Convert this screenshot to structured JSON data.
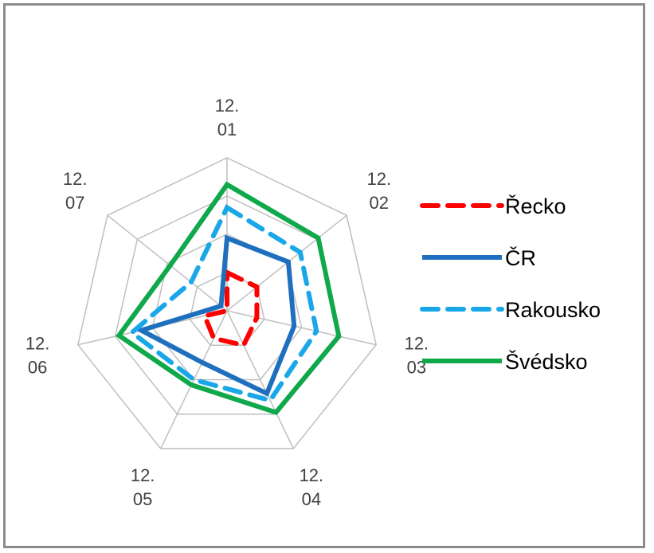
{
  "chart_data": {
    "type": "radar",
    "categories": [
      [
        "12.",
        "01"
      ],
      [
        "12.",
        "02"
      ],
      [
        "12.",
        "03"
      ],
      [
        "12.",
        "04"
      ],
      [
        "12.",
        "05"
      ],
      [
        "12.",
        "06"
      ],
      [
        "12.",
        "07"
      ]
    ],
    "rlim": [
      0,
      4
    ],
    "grid": true,
    "legend_position": "right",
    "series": [
      {
        "name": "Řecko",
        "color": "#ff0000",
        "dash": "long-dash",
        "values": [
          1.0,
          1.0,
          0.8,
          1.0,
          0.8,
          0.6,
          0.0
        ]
      },
      {
        "name": "ČR",
        "color": "#1f6fbf",
        "dash": "solid",
        "values": [
          1.9,
          2.05,
          1.8,
          2.4,
          1.5,
          2.3,
          0.2
        ]
      },
      {
        "name": "Rakousko",
        "color": "#1aa7e8",
        "dash": "long-dash",
        "values": [
          2.7,
          2.45,
          2.4,
          2.6,
          2.0,
          2.55,
          1.2
        ]
      },
      {
        "name": "Švédsko",
        "color": "#0fa84a",
        "dash": "solid",
        "values": [
          3.3,
          3.05,
          3.0,
          2.95,
          2.15,
          2.9,
          1.9
        ]
      }
    ]
  }
}
